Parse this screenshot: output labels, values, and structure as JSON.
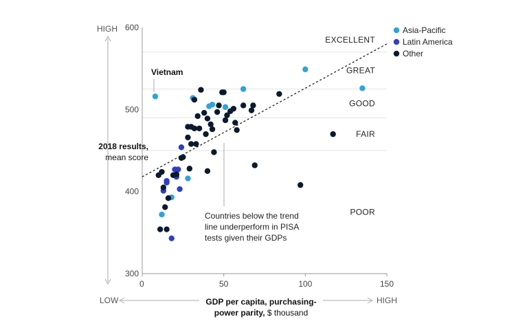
{
  "chart_data": {
    "type": "scatter",
    "xlabel_bold": "GDP per capita, purchasing-power parity,",
    "xlabel_rest": "$ thousand",
    "ylabel_bold": "2018 results,",
    "ylabel_rest": "mean score",
    "xlim": [
      0,
      150
    ],
    "ylim": [
      300,
      600
    ],
    "x_ticks": [
      "0",
      "50",
      "100",
      "150"
    ],
    "y_ticks": [
      "300",
      "400",
      "500",
      "600"
    ],
    "y_axis_low": "",
    "y_axis_high": "HIGH",
    "x_axis_low": "LOW",
    "x_axis_high": "HIGH",
    "bands": [
      {
        "label": "EXCELLENT",
        "from": 570,
        "to": 600
      },
      {
        "label": "GREAT",
        "from": 525,
        "to": 570
      },
      {
        "label": "GOOD",
        "from": 490,
        "to": 525
      },
      {
        "label": "FAIR",
        "from": 450,
        "to": 490
      },
      {
        "label": "POOR",
        "from": 300,
        "to": 450
      }
    ],
    "trend_line": {
      "x": [
        0,
        150
      ],
      "y": [
        418,
        580
      ]
    },
    "annotation": "Countries below the trend line underperform in PISA tests given their GDPs",
    "annotation_lines": [
      "Countries below the trend",
      "line underperform in PISA",
      "tests given their GDPs"
    ],
    "highlight_label": "Vietnam",
    "legend": [
      {
        "name": "Asia-Pacific",
        "color": "#2ea3dd"
      },
      {
        "name": "Latin America",
        "color": "#2e3fc7"
      },
      {
        "name": "Other",
        "color": "#0b1a2e"
      }
    ],
    "series": [
      {
        "name": "Asia-Pacific",
        "color": "#2ea3dd",
        "points": [
          {
            "x": 8,
            "y": 516
          },
          {
            "x": 12,
            "y": 372
          },
          {
            "x": 18,
            "y": 393
          },
          {
            "x": 28,
            "y": 416
          },
          {
            "x": 31,
            "y": 514
          },
          {
            "x": 41,
            "y": 504
          },
          {
            "x": 43,
            "y": 506
          },
          {
            "x": 51,
            "y": 503
          },
          {
            "x": 62,
            "y": 525
          },
          {
            "x": 100,
            "y": 549
          },
          {
            "x": 135,
            "y": 526
          }
        ]
      },
      {
        "name": "Latin America",
        "color": "#2e3fc7",
        "points": [
          {
            "x": 13,
            "y": 401
          },
          {
            "x": 15,
            "y": 413
          },
          {
            "x": 18,
            "y": 343
          },
          {
            "x": 20,
            "y": 427
          },
          {
            "x": 21,
            "y": 418
          },
          {
            "x": 22,
            "y": 427
          },
          {
            "x": 23,
            "y": 403
          },
          {
            "x": 24,
            "y": 454
          },
          {
            "x": 15,
            "y": 411
          }
        ]
      },
      {
        "name": "Other",
        "color": "#0b1a2e",
        "points": [
          {
            "x": 10,
            "y": 420
          },
          {
            "x": 11,
            "y": 354
          },
          {
            "x": 12,
            "y": 424
          },
          {
            "x": 13,
            "y": 405
          },
          {
            "x": 14,
            "y": 381
          },
          {
            "x": 15,
            "y": 354
          },
          {
            "x": 16,
            "y": 392
          },
          {
            "x": 19,
            "y": 420
          },
          {
            "x": 21,
            "y": 421
          },
          {
            "x": 24,
            "y": 441
          },
          {
            "x": 25,
            "y": 442
          },
          {
            "x": 28,
            "y": 479
          },
          {
            "x": 28,
            "y": 466
          },
          {
            "x": 29,
            "y": 428
          },
          {
            "x": 30,
            "y": 458
          },
          {
            "x": 30,
            "y": 479
          },
          {
            "x": 32,
            "y": 477
          },
          {
            "x": 32,
            "y": 512
          },
          {
            "x": 33,
            "y": 458
          },
          {
            "x": 34,
            "y": 492
          },
          {
            "x": 35,
            "y": 477
          },
          {
            "x": 36,
            "y": 524
          },
          {
            "x": 38,
            "y": 496
          },
          {
            "x": 39,
            "y": 470
          },
          {
            "x": 40,
            "y": 489
          },
          {
            "x": 40,
            "y": 425
          },
          {
            "x": 42,
            "y": 482
          },
          {
            "x": 43,
            "y": 476
          },
          {
            "x": 44,
            "y": 448
          },
          {
            "x": 46,
            "y": 497
          },
          {
            "x": 47,
            "y": 505
          },
          {
            "x": 49,
            "y": 521
          },
          {
            "x": 50,
            "y": 521
          },
          {
            "x": 51,
            "y": 487
          },
          {
            "x": 52,
            "y": 493
          },
          {
            "x": 54,
            "y": 498
          },
          {
            "x": 56,
            "y": 501
          },
          {
            "x": 57,
            "y": 484
          },
          {
            "x": 58,
            "y": 475
          },
          {
            "x": 62,
            "y": 505
          },
          {
            "x": 67,
            "y": 499
          },
          {
            "x": 68,
            "y": 505
          },
          {
            "x": 69,
            "y": 432
          },
          {
            "x": 84,
            "y": 519
          },
          {
            "x": 97,
            "y": 408
          },
          {
            "x": 117,
            "y": 470
          }
        ]
      }
    ]
  }
}
